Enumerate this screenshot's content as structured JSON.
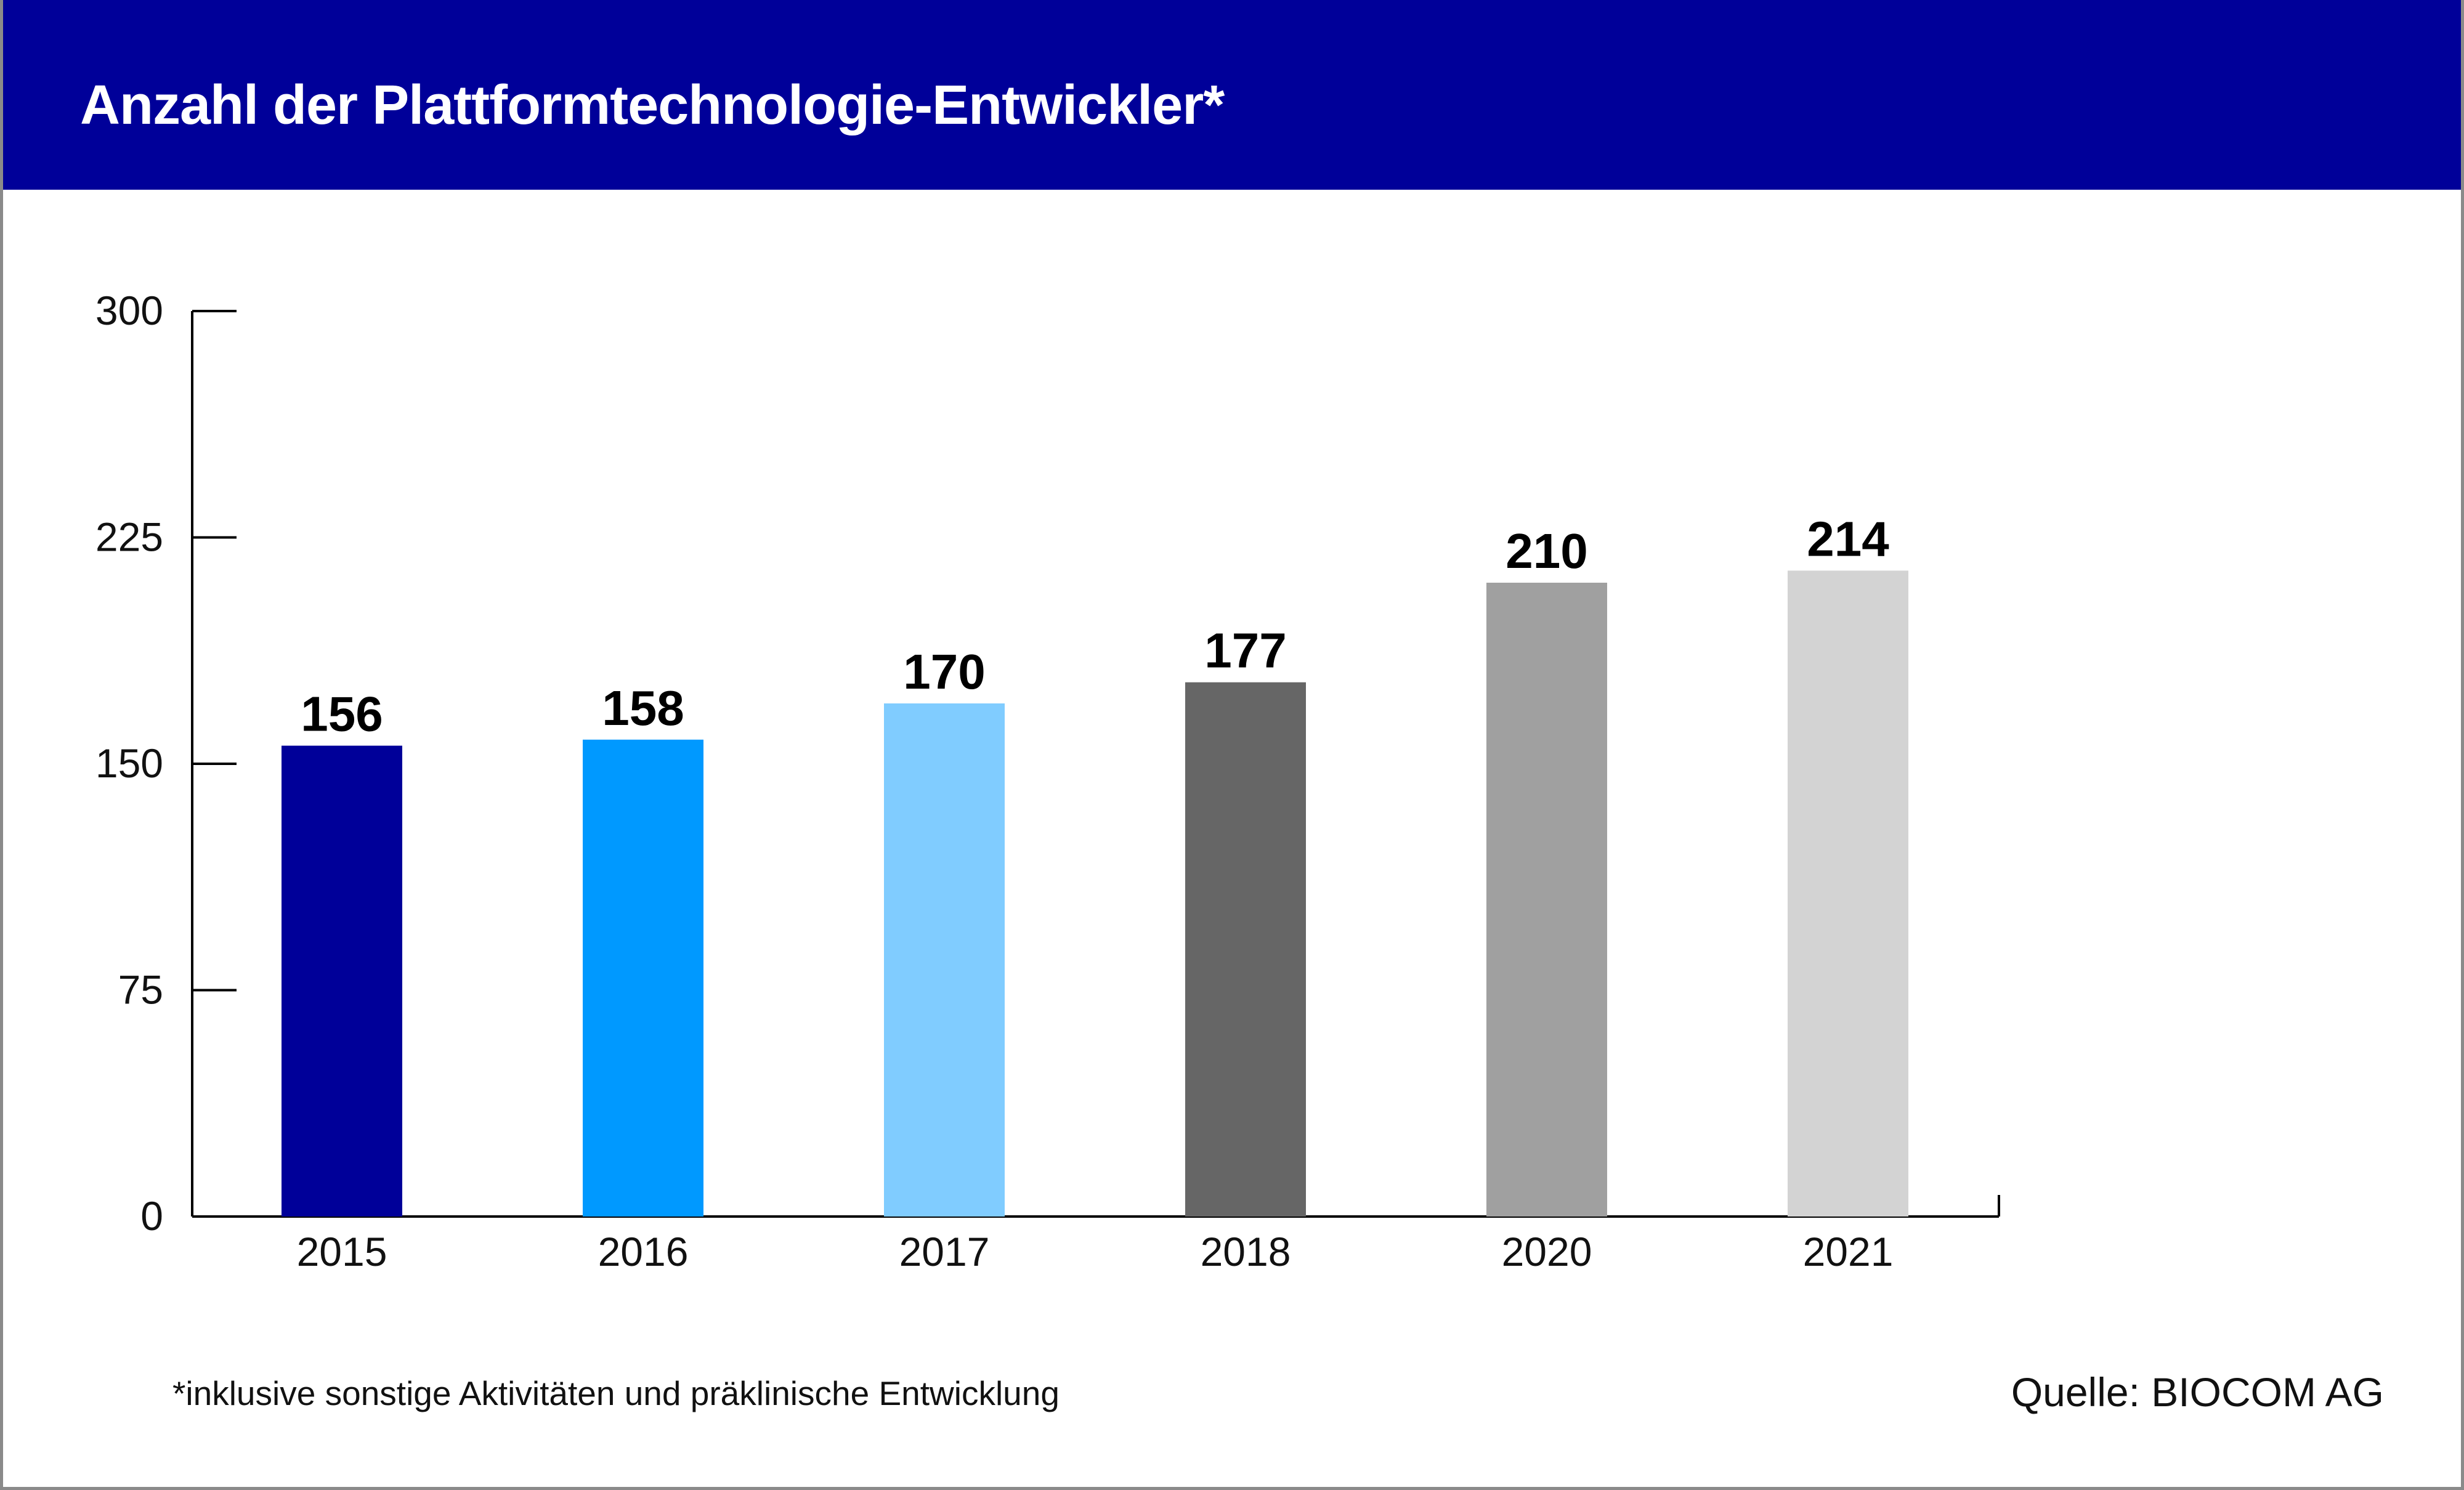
{
  "header": {
    "title": "Anzahl der Plattformtechnologie-Entwickler*"
  },
  "chart_data": {
    "type": "bar",
    "title": "Anzahl der Plattformtechnologie-Entwickler*",
    "xlabel": "",
    "ylabel": "",
    "categories": [
      "2015",
      "2016",
      "2017",
      "2018",
      "2020",
      "2021"
    ],
    "values": [
      156,
      158,
      170,
      177,
      210,
      214
    ],
    "colors": [
      "#000099",
      "#0099ff",
      "#80ccff",
      "#666666",
      "#a0a0a0",
      "#d3d3d3"
    ],
    "ylim": [
      0,
      300
    ],
    "yticks": [
      "0",
      "75",
      "150",
      "225",
      "300"
    ],
    "data_labels": [
      "156",
      "158",
      "170",
      "177",
      "210",
      "214"
    ],
    "grid": false,
    "legend": "none"
  },
  "footer": {
    "footnote": "*inklusive sonstige Aktivitäten und präklinische Entwicklung",
    "source": "Quelle: BIOCOM AG"
  },
  "colors": {
    "header_background": "#000099",
    "header_text": "#ffffff",
    "frame_border": "#8a8a8a"
  }
}
